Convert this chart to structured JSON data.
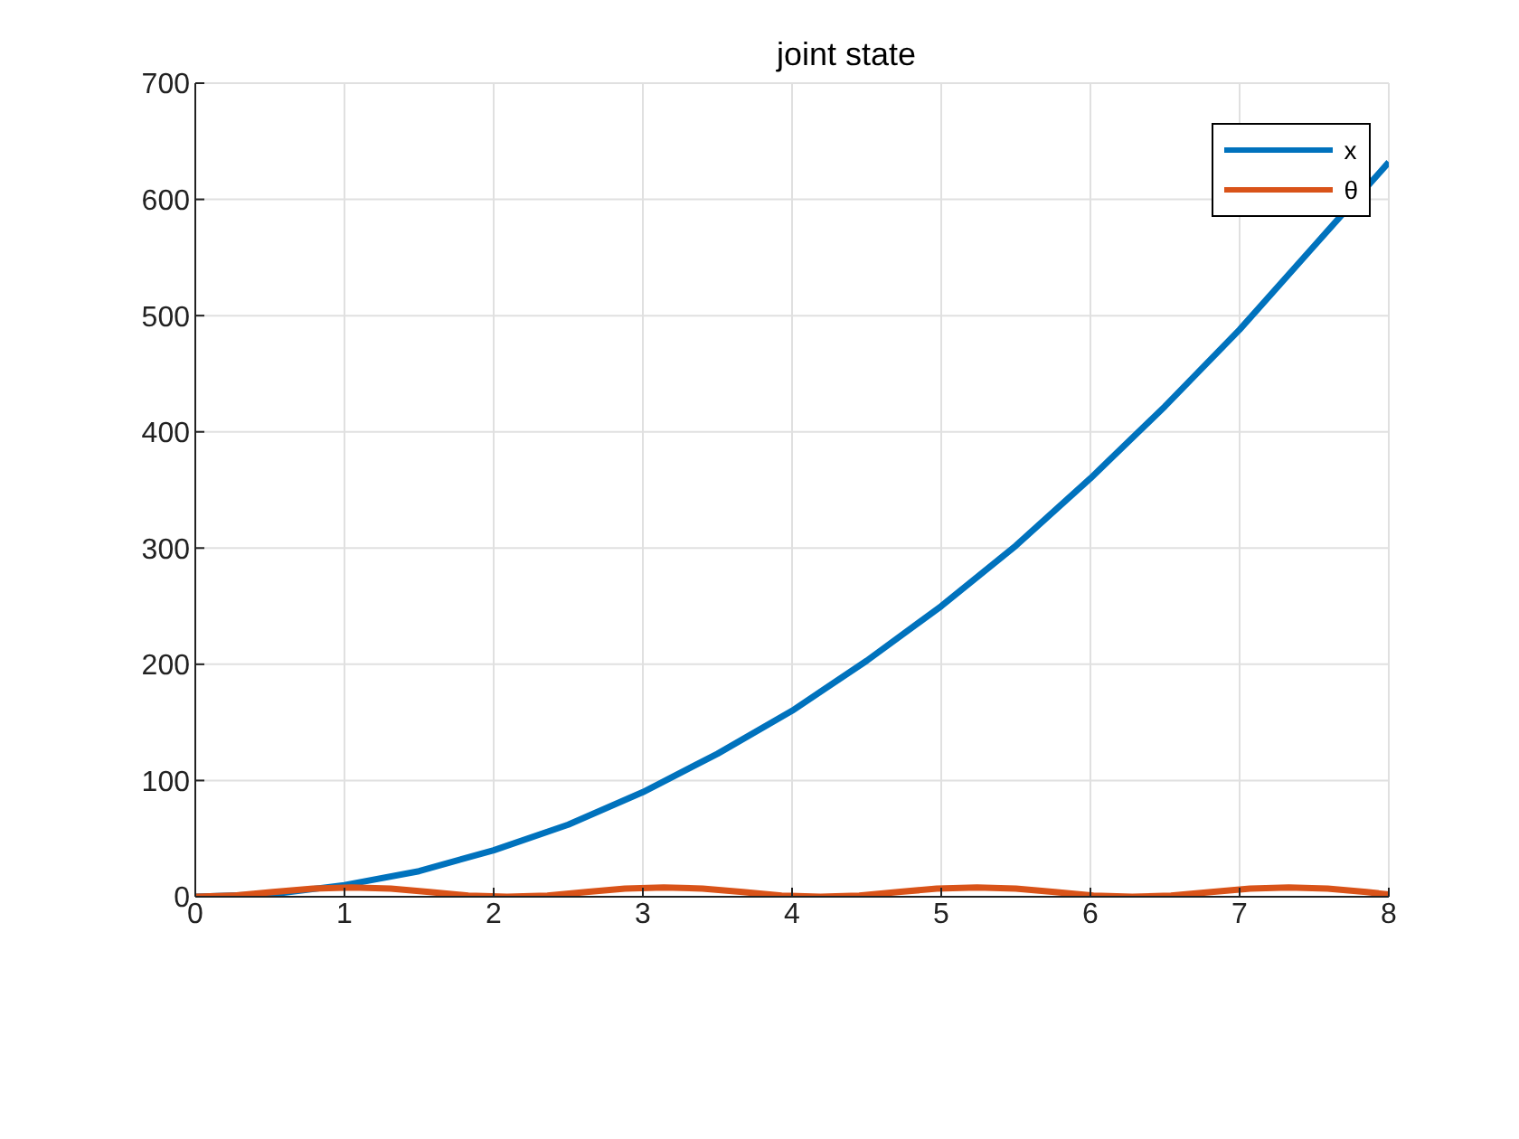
{
  "chart_data": {
    "type": "line",
    "title": "joint state",
    "xlim": [
      0,
      8
    ],
    "xticks": [
      0,
      1,
      2,
      3,
      4,
      5,
      6,
      7,
      8
    ],
    "ylim": [
      0,
      700
    ],
    "yticks": [
      0,
      100,
      200,
      300,
      400,
      500,
      600,
      700
    ],
    "grid": true,
    "legend": "top right",
    "marker": "none",
    "line_style": "solid",
    "series": [
      {
        "name": "x",
        "color": "#0072bd",
        "x": [
          0,
          0.5,
          1,
          1.5,
          2,
          2.5,
          3,
          3.5,
          4,
          4.5,
          5,
          5.5,
          6,
          6.5,
          7,
          7.5,
          8
        ],
        "values": [
          0,
          2,
          10,
          22,
          40,
          62,
          90,
          123,
          160,
          203,
          250,
          302,
          360,
          422,
          488,
          560,
          632
        ]
      },
      {
        "name": "θ",
        "color": "#d95319",
        "x": [
          0,
          0.26,
          0.52,
          0.79,
          1.05,
          1.31,
          1.57,
          1.83,
          2.09,
          2.36,
          2.62,
          2.88,
          3.14,
          3.4,
          3.67,
          3.93,
          4.19,
          4.45,
          4.71,
          4.97,
          5.24,
          5.5,
          5.76,
          6.02,
          6.28,
          6.54,
          6.81,
          7.07,
          7.33,
          7.59,
          7.85,
          8
        ],
        "values": [
          0,
          1,
          4,
          7,
          8,
          7,
          4,
          1,
          0,
          1,
          4,
          7,
          8,
          7,
          4,
          1,
          0,
          1,
          4,
          7,
          8,
          7,
          4,
          1,
          0,
          1,
          4,
          7,
          8,
          7,
          4,
          2
        ]
      }
    ]
  }
}
